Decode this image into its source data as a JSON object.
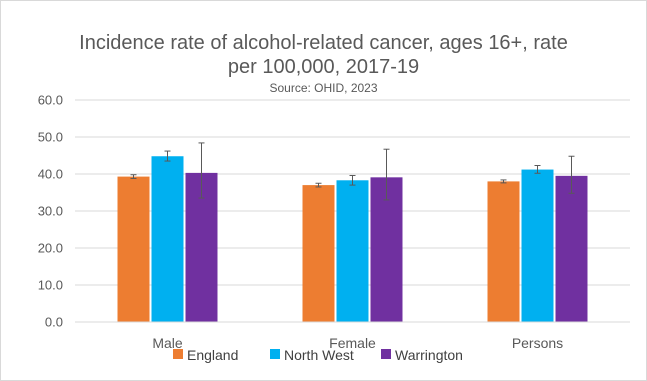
{
  "chart_data": {
    "type": "bar",
    "title_line1": "Incidence rate of alcohol-related cancer, ages 16+, rate",
    "title_line2": "per 100,000, 2017-19",
    "subtitle": "Source: OHID, 2023",
    "categories": [
      "Male",
      "Female",
      "Persons"
    ],
    "series": [
      {
        "name": "England",
        "color": "#ED7D31",
        "values": [
          39.3,
          37.0,
          38.0
        ],
        "ci_low": [
          38.8,
          36.5,
          37.6
        ],
        "ci_high": [
          39.8,
          37.5,
          38.4
        ]
      },
      {
        "name": "North West",
        "color": "#00B0F0",
        "values": [
          44.8,
          38.3,
          41.2
        ],
        "ci_low": [
          43.5,
          37.0,
          40.2
        ],
        "ci_high": [
          46.2,
          39.6,
          42.3
        ]
      },
      {
        "name": "Warrington",
        "color": "#7030A0",
        "values": [
          40.3,
          39.1,
          39.5
        ],
        "ci_low": [
          33.5,
          33.0,
          34.8
        ],
        "ci_high": [
          48.4,
          46.7,
          44.8
        ]
      }
    ],
    "ylim": [
      0,
      60
    ],
    "yticks": [
      "0.0",
      "10.0",
      "20.0",
      "30.0",
      "40.0",
      "50.0",
      "60.0"
    ],
    "grid": true,
    "legend_position": "bottom"
  }
}
